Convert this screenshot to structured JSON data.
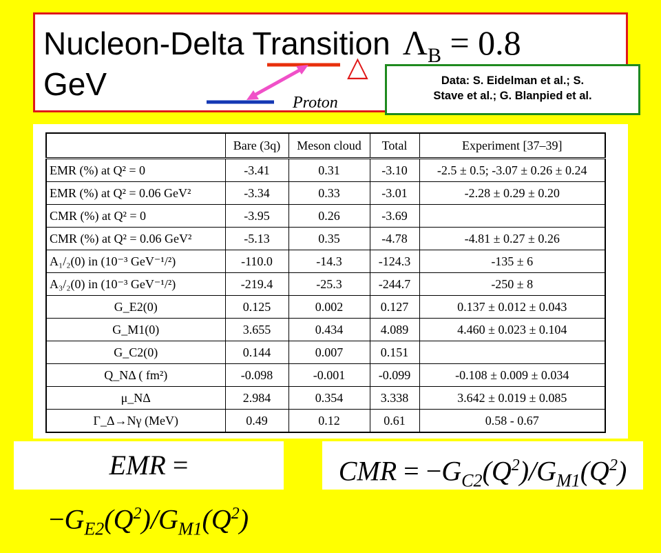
{
  "title": {
    "line1": "Nucleon-Delta Transition",
    "lambda": "Λ",
    "lambda_sub": "B",
    "lambda_value": " = 0.8",
    "line2": "GeV"
  },
  "diagram": {
    "proton_label": "Proton",
    "delta_symbol": "△",
    "colors": {
      "delta_level": "#e8300c",
      "proton_level": "#1438b4",
      "arrow": "#f050c8"
    }
  },
  "credit": {
    "line1": "Data: S. Eidelman et al.; S.",
    "line2": "Stave et al.; G. Blanpied et al."
  },
  "table": {
    "headers": [
      "",
      "Bare (3q)",
      "Meson cloud",
      "Total",
      "Experiment [37–39]"
    ],
    "rows": [
      [
        "EMR (%) at Q² = 0",
        "-3.41",
        "0.31",
        "-3.10",
        "-2.5 ± 0.5; -3.07 ± 0.26 ± 0.24"
      ],
      [
        "EMR (%) at Q² = 0.06 GeV²",
        "-3.34",
        "0.33",
        "-3.01",
        "-2.28 ± 0.29 ± 0.20"
      ],
      [
        "CMR (%) at Q² = 0",
        "-3.95",
        "0.26",
        "-3.69",
        ""
      ],
      [
        "CMR (%) at Q² = 0.06 GeV²",
        "-5.13",
        "0.35",
        "-4.78",
        "-4.81 ± 0.27 ± 0.26"
      ],
      [
        "A₁/₂(0) in (10⁻³  GeV⁻¹/²)",
        "-110.0",
        "-14.3",
        "-124.3",
        "-135 ± 6"
      ],
      [
        "A₃/₂(0) in (10⁻³  GeV⁻¹/²)",
        "-219.4",
        "-25.3",
        "-244.7",
        "-250 ± 8"
      ],
      [
        "G_E2(0)",
        "0.125",
        "0.002",
        "0.127",
        "0.137 ± 0.012 ± 0.043"
      ],
      [
        "G_M1(0)",
        "3.655",
        "0.434",
        "4.089",
        "4.460 ± 0.023 ± 0.104"
      ],
      [
        "G_C2(0)",
        "0.144",
        "0.007",
        "0.151",
        ""
      ],
      [
        "Q_NΔ ( fm²)",
        "-0.098",
        "-0.001",
        "-0.099",
        "-0.108 ± 0.009 ± 0.034"
      ],
      [
        "μ_NΔ",
        "2.984",
        "0.354",
        "3.338",
        "3.642 ± 0.019 ± 0.085"
      ],
      [
        "Γ_Δ→Nγ (MeV)",
        "0.49",
        "0.12",
        "0.61",
        "0.58 - 0.67"
      ]
    ]
  },
  "formulas": {
    "emr": {
      "lhs": "EMR",
      "eq": " = −",
      "G": "G",
      "sub1": "E2",
      "arg1": "(Q",
      "sup": "2",
      "close": ")",
      "slash": "/",
      "sub2": "M1"
    },
    "cmr": {
      "lhs": "CMR",
      "eq": " = −",
      "G": "G",
      "sub1": "C2",
      "arg1": "(Q",
      "sup": "2",
      "close": ")",
      "slash": "/",
      "sub2": "M1"
    }
  }
}
